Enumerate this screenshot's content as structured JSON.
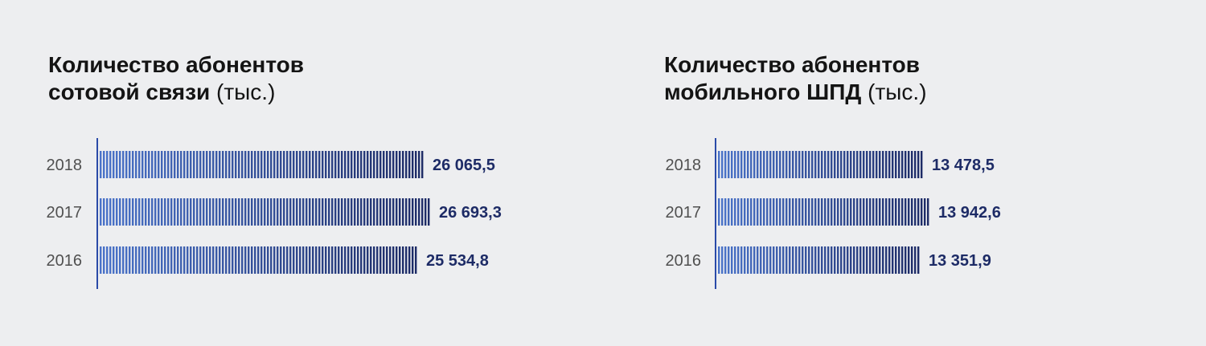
{
  "colors": {
    "background": "#edeef0",
    "axis": "#2a4aa8",
    "bar_light": "#4a73c9",
    "bar_dark": "#1d2b66",
    "value_label": "#1d2b66",
    "tick_label": "#505050"
  },
  "chart_data": [
    {
      "type": "bar",
      "orientation": "horizontal",
      "title_bold_line1": "Количество абонентов",
      "title_bold_line2": "сотовой связи",
      "title_unit": "(тыс.)",
      "categories": [
        "2018",
        "2017",
        "2016"
      ],
      "values": [
        26065.5,
        26693.3,
        25534.8
      ],
      "value_labels": [
        "26 065,5",
        "26 693,3",
        "25 534,8"
      ],
      "xlim": [
        0,
        26693.3
      ],
      "grid": false
    },
    {
      "type": "bar",
      "orientation": "horizontal",
      "title_bold_line1": "Количество абонентов",
      "title_bold_line2": "мобильного ШПД",
      "title_unit": "(тыс.)",
      "categories": [
        "2018",
        "2017",
        "2016"
      ],
      "values": [
        13478.5,
        13942.6,
        13351.9
      ],
      "value_labels": [
        "13 478,5",
        "13 942,6",
        "13 351,9"
      ],
      "xlim": [
        0,
        13942.6
      ],
      "grid": false
    }
  ]
}
